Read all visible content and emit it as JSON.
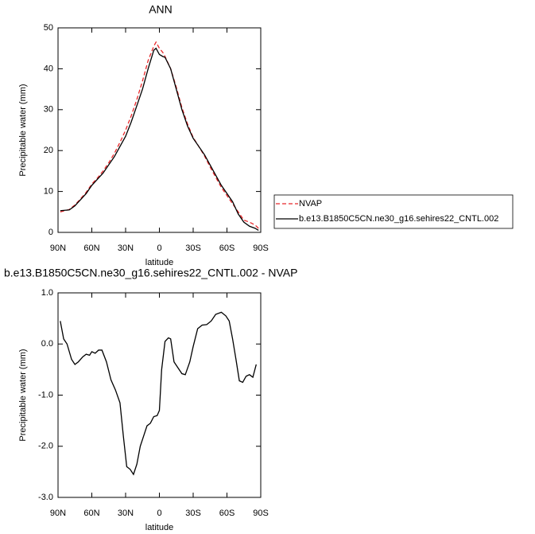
{
  "chart_data": [
    {
      "type": "line",
      "title": "ANN",
      "xlabel": "latitude",
      "ylabel": "Precipitable water (mm)",
      "x": [
        88,
        80,
        75,
        70,
        65,
        60,
        55,
        50,
        45,
        40,
        35,
        30,
        25,
        20,
        15,
        10,
        5,
        3,
        0,
        -3,
        -5,
        -10,
        -15,
        -20,
        -25,
        -30,
        -35,
        -40,
        -45,
        -50,
        -55,
        -60,
        -65,
        -70,
        -75,
        -80,
        -85,
        -88
      ],
      "series": [
        {
          "name": "NVAP",
          "color": "#e8272a",
          "style": "dashed",
          "values": [
            5,
            5.6,
            6.7,
            8.2,
            9.8,
            11.8,
            13.3,
            15,
            17,
            19.3,
            22,
            25,
            28.5,
            32.5,
            37,
            42,
            45.5,
            46.5,
            45,
            44,
            43,
            40,
            35.5,
            30.5,
            26.5,
            23.2,
            21,
            18.7,
            16,
            13.5,
            11,
            9,
            7,
            5,
            3,
            2.5,
            1.8,
            1.0
          ]
        },
        {
          "name": "b.e13.B1850C5CN.ne30_g16.sehires22_CNTL.002",
          "color": "#000000",
          "style": "solid",
          "values": [
            5.3,
            5.5,
            6.5,
            8,
            9.5,
            11.5,
            13,
            14.5,
            16.5,
            18.5,
            21,
            23.5,
            27,
            31,
            35,
            40,
            44.5,
            45,
            43.5,
            43,
            42.8,
            40,
            35,
            30,
            26,
            23,
            21,
            19,
            16.5,
            14,
            11.5,
            9.5,
            7.5,
            4.5,
            2.5,
            1.5,
            1.0,
            0.5
          ]
        }
      ],
      "xlim": [
        90,
        -90
      ],
      "xticks": [
        {
          "value": 90,
          "label": "90N"
        },
        {
          "value": 60,
          "label": "60N"
        },
        {
          "value": 30,
          "label": "30N"
        },
        0,
        {
          "value": -30,
          "label": "30S"
        },
        {
          "value": -60,
          "label": "60S"
        },
        {
          "value": -90,
          "label": "90S"
        }
      ],
      "ylim": [
        0,
        50
      ],
      "yticks": [
        0,
        10,
        20,
        30,
        40,
        50
      ],
      "legend": "right"
    },
    {
      "type": "line",
      "title": "b.e13.B1850C5CN.ne30_g16.sehires22_CNTL.002 - NVAP",
      "xlabel": "latitude",
      "ylabel": "Precipitable water (mm)",
      "x": [
        88,
        85,
        82,
        78,
        75,
        72,
        68,
        65,
        62,
        60,
        57,
        54,
        51,
        47,
        43,
        39,
        35,
        32,
        29,
        26,
        23,
        20,
        17,
        14,
        11,
        8,
        5,
        2,
        0,
        -2,
        -5,
        -8,
        -10,
        -13,
        -16,
        -20,
        -23,
        -27,
        -30,
        -34,
        -38,
        -42,
        -46,
        -50,
        -55,
        -59,
        -62,
        -65,
        -68,
        -71,
        -74,
        -77,
        -80,
        -83,
        -86
      ],
      "series": [
        {
          "name": null,
          "color": "#000000",
          "style": "solid",
          "values": [
            0.45,
            0.1,
            0,
            -0.3,
            -0.4,
            -0.35,
            -0.25,
            -0.2,
            -0.22,
            -0.15,
            -0.18,
            -0.12,
            -0.12,
            -0.35,
            -0.7,
            -0.9,
            -1.15,
            -1.8,
            -2.4,
            -2.45,
            -2.55,
            -2.35,
            -2.0,
            -1.8,
            -1.6,
            -1.55,
            -1.42,
            -1.4,
            -1.3,
            -0.5,
            0.05,
            0.12,
            0.1,
            -0.35,
            -0.45,
            -0.58,
            -0.6,
            -0.35,
            -0.05,
            0.3,
            0.37,
            0.38,
            0.45,
            0.58,
            0.62,
            0.55,
            0.45,
            0.1,
            -0.3,
            -0.72,
            -0.75,
            -0.63,
            -0.6,
            -0.65,
            -0.4
          ]
        }
      ],
      "xlim": [
        90,
        -90
      ],
      "xticks": [
        {
          "value": 90,
          "label": "90N"
        },
        {
          "value": 60,
          "label": "60N"
        },
        {
          "value": 30,
          "label": "30N"
        },
        0,
        {
          "value": -30,
          "label": "30S"
        },
        {
          "value": -60,
          "label": "60S"
        },
        {
          "value": -90,
          "label": "90S"
        }
      ],
      "ylim": [
        -3,
        1
      ],
      "yticks": [
        {
          "value": -3,
          "label": "-3.0"
        },
        {
          "value": -2,
          "label": "-2.0"
        },
        {
          "value": -1,
          "label": "-1.0"
        },
        {
          "value": 0,
          "label": "0.0"
        },
        {
          "value": 1,
          "label": "1.0"
        }
      ]
    }
  ]
}
